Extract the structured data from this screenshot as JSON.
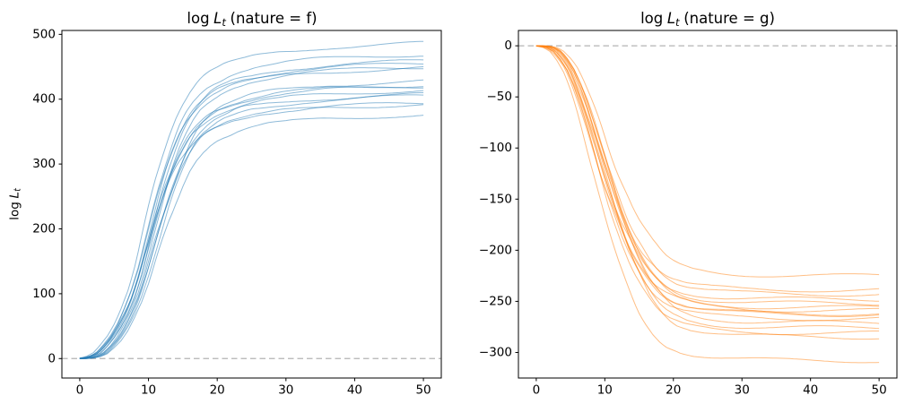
{
  "figure": {
    "background": "#ffffff"
  },
  "chart_data": [
    {
      "type": "line",
      "panel": "nature = f",
      "title": {
        "text": "log L_t (nature = f)",
        "prefix": "log",
        "variable": "L",
        "subscript": "t",
        "suffix": "(nature = f)"
      },
      "ylabel": {
        "text": "log L_t",
        "prefix": "log",
        "variable": "L",
        "subscript": "t"
      },
      "xlabel": "",
      "xlim": [
        -2.6,
        52.6
      ],
      "ylim": [
        -30,
        506
      ],
      "xticks": [
        0,
        10,
        20,
        30,
        40,
        50
      ],
      "yticks": [
        0,
        100,
        200,
        300,
        400,
        500
      ],
      "grid": false,
      "legend": null,
      "x_range": [
        0,
        50
      ],
      "line_color": "#1f77b4",
      "line_alpha": 0.5,
      "line_width": 1,
      "noise_amp": 12,
      "zero_line": {
        "y": 0,
        "color": "#b3b3b3",
        "dash": [
          6.5,
          4
        ]
      },
      "shape_profile": [
        [
          0,
          0
        ],
        [
          1,
          0.002
        ],
        [
          2,
          0.008
        ],
        [
          3,
          0.02
        ],
        [
          4,
          0.045
        ],
        [
          5,
          0.075
        ],
        [
          6,
          0.115
        ],
        [
          7,
          0.165
        ],
        [
          8,
          0.225
        ],
        [
          9,
          0.305
        ],
        [
          10,
          0.4
        ],
        [
          11,
          0.49
        ],
        [
          12,
          0.575
        ],
        [
          13,
          0.65
        ],
        [
          14,
          0.715
        ],
        [
          15,
          0.77
        ],
        [
          16,
          0.815
        ],
        [
          17,
          0.85
        ],
        [
          18,
          0.875
        ],
        [
          19,
          0.895
        ],
        [
          20,
          0.91
        ],
        [
          22,
          0.932
        ],
        [
          24,
          0.947
        ],
        [
          26,
          0.958
        ],
        [
          28,
          0.966
        ],
        [
          30,
          0.973
        ],
        [
          33,
          0.98
        ],
        [
          36,
          0.986
        ],
        [
          40,
          0.991
        ],
        [
          45,
          0.996
        ],
        [
          50,
          1.0
        ]
      ],
      "series": [
        {
          "plateau": 486,
          "shift": -0.9,
          "seed": 3
        },
        {
          "plateau": 469,
          "shift": -0.4,
          "seed": 7
        },
        {
          "plateau": 459,
          "shift": 0.2,
          "seed": 11
        },
        {
          "plateau": 455,
          "shift": -0.2,
          "seed": 5
        },
        {
          "plateau": 450,
          "shift": 0.5,
          "seed": 13
        },
        {
          "plateau": 448,
          "shift": -0.6,
          "seed": 2
        },
        {
          "plateau": 428,
          "shift": 0.8,
          "seed": 9
        },
        {
          "plateau": 422,
          "shift": 0.0,
          "seed": 14
        },
        {
          "plateau": 420,
          "shift": -0.3,
          "seed": 6
        },
        {
          "plateau": 414,
          "shift": 0.6,
          "seed": 1
        },
        {
          "plateau": 407,
          "shift": -0.5,
          "seed": 10
        },
        {
          "plateau": 405,
          "shift": 0.9,
          "seed": 4
        },
        {
          "plateau": 394,
          "shift": 0.3,
          "seed": 12
        },
        {
          "plateau": 392,
          "shift": -0.7,
          "seed": 8
        },
        {
          "plateau": 376,
          "shift": 1.0,
          "seed": 15
        }
      ]
    },
    {
      "type": "line",
      "panel": "nature = g",
      "title": {
        "text": "log L_t (nature = g)",
        "prefix": "log",
        "variable": "L",
        "subscript": "t",
        "suffix": "(nature = g)"
      },
      "ylabel": null,
      "xlabel": "",
      "xlim": [
        -2.6,
        52.6
      ],
      "ylim": [
        -325,
        15
      ],
      "xticks": [
        0,
        10,
        20,
        30,
        40,
        50
      ],
      "yticks": [
        0,
        -50,
        -100,
        -150,
        -200,
        -250,
        -300
      ],
      "grid": false,
      "legend": null,
      "x_range": [
        0,
        50
      ],
      "line_color": "#ff7f0e",
      "line_alpha": 0.5,
      "line_width": 1,
      "noise_amp": 8,
      "zero_line": {
        "y": 0,
        "color": "#b3b3b3",
        "dash": [
          6.5,
          4
        ]
      },
      "shape_profile": [
        [
          0,
          0
        ],
        [
          1,
          0.001
        ],
        [
          2,
          0.006
        ],
        [
          3,
          0.02
        ],
        [
          4,
          0.05
        ],
        [
          5,
          0.09
        ],
        [
          6,
          0.15
        ],
        [
          7,
          0.22
        ],
        [
          8,
          0.3
        ],
        [
          9,
          0.385
        ],
        [
          10,
          0.47
        ],
        [
          11,
          0.55
        ],
        [
          12,
          0.625
        ],
        [
          13,
          0.695
        ],
        [
          14,
          0.755
        ],
        [
          15,
          0.805
        ],
        [
          16,
          0.85
        ],
        [
          17,
          0.885
        ],
        [
          18,
          0.915
        ],
        [
          19,
          0.937
        ],
        [
          20,
          0.953
        ],
        [
          22,
          0.972
        ],
        [
          24,
          0.982
        ],
        [
          26,
          0.988
        ],
        [
          28,
          0.992
        ],
        [
          30,
          0.995
        ],
        [
          35,
          0.998
        ],
        [
          40,
          0.999
        ],
        [
          45,
          1.0
        ],
        [
          50,
          1.0
        ]
      ],
      "series": [
        {
          "plateau": -225,
          "shift": 0.9,
          "seed": 4
        },
        {
          "plateau": -239,
          "shift": -0.3,
          "seed": 9
        },
        {
          "plateau": -243,
          "shift": 0.4,
          "seed": 1
        },
        {
          "plateau": -248,
          "shift": -0.6,
          "seed": 13
        },
        {
          "plateau": -252,
          "shift": 0.1,
          "seed": 6
        },
        {
          "plateau": -256,
          "shift": -0.8,
          "seed": 11
        },
        {
          "plateau": -259,
          "shift": 0.6,
          "seed": 3
        },
        {
          "plateau": -262,
          "shift": -0.2,
          "seed": 15
        },
        {
          "plateau": -263,
          "shift": 0.3,
          "seed": 8
        },
        {
          "plateau": -267,
          "shift": -0.5,
          "seed": 2
        },
        {
          "plateau": -271,
          "shift": 0.7,
          "seed": 12
        },
        {
          "plateau": -276,
          "shift": 0.0,
          "seed": 5
        },
        {
          "plateau": -281,
          "shift": -0.4,
          "seed": 10
        },
        {
          "plateau": -285,
          "shift": 0.5,
          "seed": 7
        },
        {
          "plateau": -308,
          "shift": -0.9,
          "seed": 14
        }
      ]
    }
  ]
}
